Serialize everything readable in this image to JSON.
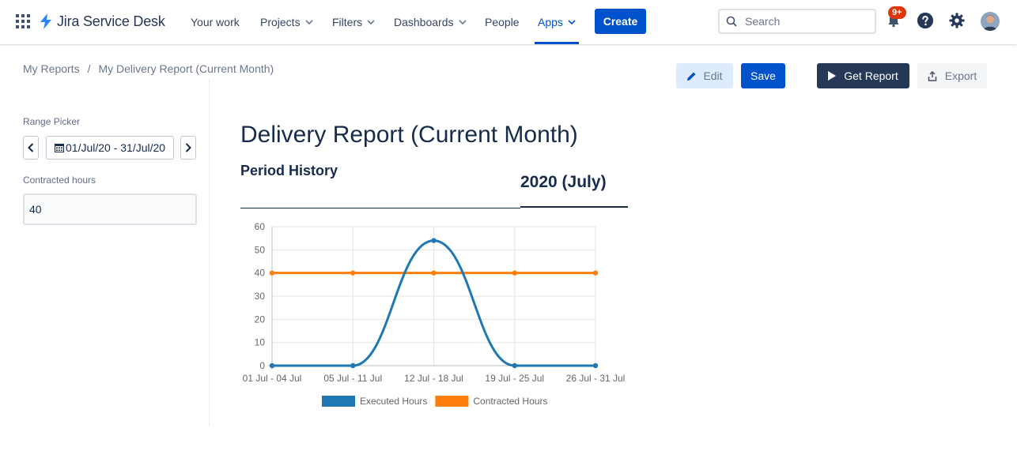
{
  "nav": {
    "product_name": "Jira Service Desk",
    "items": [
      {
        "label": "Your work",
        "has_dropdown": false
      },
      {
        "label": "Projects",
        "has_dropdown": true
      },
      {
        "label": "Filters",
        "has_dropdown": true
      },
      {
        "label": "Dashboards",
        "has_dropdown": true
      },
      {
        "label": "People",
        "has_dropdown": false
      },
      {
        "label": "Apps",
        "has_dropdown": true,
        "active": true
      }
    ],
    "create_label": "Create",
    "search_placeholder": "Search",
    "notification_badge": "9+",
    "icons": [
      "app-switcher-icon",
      "jira-logo-icon",
      "search-icon",
      "notification-icon",
      "help-icon",
      "settings-icon",
      "avatar"
    ]
  },
  "breadcrumb": {
    "root": "My Reports",
    "separator": "/",
    "current": "My Delivery Report (Current Month)"
  },
  "toolbar": {
    "edit_label": "Edit",
    "save_label": "Save",
    "get_report_label": "Get Report",
    "export_label": "Export"
  },
  "sidebar": {
    "range_label": "Range Picker",
    "date_range": "01/Jul/20 - 31/Jul/20",
    "contracted_label": "Contracted hours",
    "contracted_value": "40"
  },
  "report": {
    "title": "Delivery Report (Current Month)",
    "section": "Period History",
    "period": "2020 (July)"
  },
  "colors": {
    "primary": "#0052cc",
    "dark": "#253858",
    "executed": "#1f77b4",
    "contracted": "#ff7f0e",
    "badge": "#de350b"
  },
  "chart_data": {
    "type": "line",
    "categories": [
      "01 Jul - 04 Jul",
      "05 Jul - 11 Jul",
      "12 Jul - 18 Jul",
      "19 Jul - 25 Jul",
      "26 Jul - 31 Jul"
    ],
    "series": [
      {
        "name": "Executed Hours",
        "values": [
          0,
          0,
          54,
          0,
          0
        ],
        "color": "#1f77b4"
      },
      {
        "name": "Contracted Hours",
        "values": [
          40,
          40,
          40,
          40,
          40
        ],
        "color": "#ff7f0e"
      }
    ],
    "ylim": [
      0,
      60
    ],
    "yticks": [
      0,
      10,
      20,
      30,
      40,
      50,
      60
    ],
    "grid": true,
    "legend": "bottom",
    "title": "",
    "xlabel": "",
    "ylabel": ""
  }
}
